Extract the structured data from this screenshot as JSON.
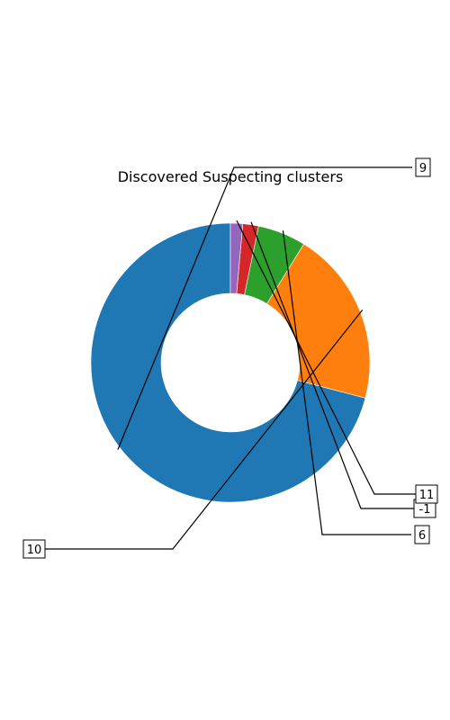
{
  "chart_data": {
    "type": "pie",
    "style": "donut",
    "title": "Discovered Suspecting clusters",
    "slices": [
      {
        "label": "9",
        "value": 70.0,
        "color": "#1f77b4"
      },
      {
        "label": "10",
        "value": 20.0,
        "color": "#ff7f0e"
      },
      {
        "label": "6",
        "value": 5.5,
        "color": "#2ca02c"
      },
      {
        "label": "-1",
        "value": 1.8,
        "color": "#d62728"
      },
      {
        "label": "11",
        "value": 1.4,
        "color": "#9467bd"
      }
    ],
    "legend": "none"
  }
}
